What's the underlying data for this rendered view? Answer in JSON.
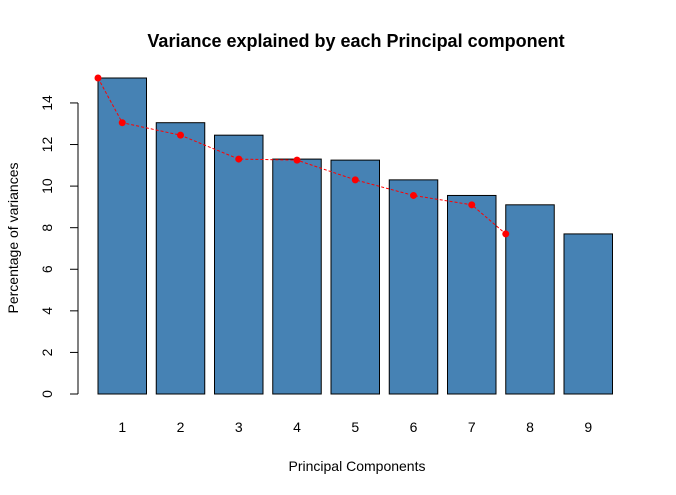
{
  "chart_data": {
    "type": "bar",
    "title": "Variance explained by each Principal component",
    "xlabel": "Principal Components",
    "ylabel": "Percentage of variances",
    "categories": [
      "1",
      "2",
      "3",
      "4",
      "5",
      "6",
      "7",
      "8",
      "9"
    ],
    "values": [
      15.2,
      13.05,
      12.45,
      11.3,
      11.25,
      10.3,
      9.55,
      9.1,
      7.7
    ],
    "ylim": [
      0,
      15.2
    ],
    "yticks": [
      0,
      2,
      4,
      6,
      8,
      10,
      12,
      14
    ],
    "grid": false,
    "legend": "none",
    "bar_color": "#4682B4",
    "overlay": {
      "type": "line",
      "color": "#FF0000",
      "line_style": "dashed",
      "marker": "filled-circle",
      "x": [
        1.0,
        1.5,
        2.5,
        3.5,
        4.5,
        5.5,
        6.5,
        7.5,
        8.0
      ],
      "values": [
        15.2,
        13.05,
        12.45,
        11.3,
        11.25,
        10.3,
        9.55,
        9.1,
        7.7
      ]
    }
  }
}
